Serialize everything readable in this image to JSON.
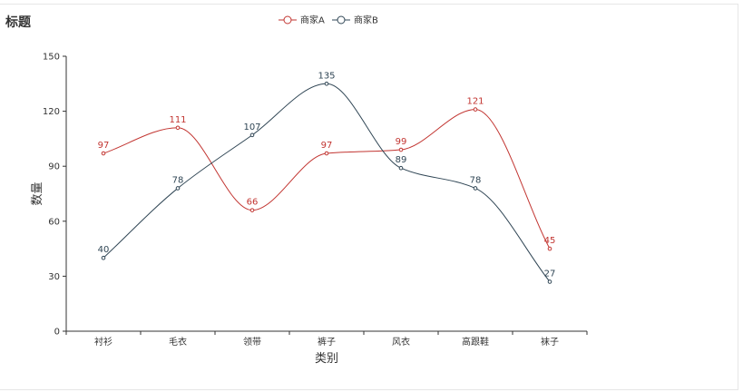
{
  "chart_data": {
    "type": "line",
    "title": "标题",
    "xlabel": "类别",
    "ylabel": "数量",
    "categories": [
      "衬衫",
      "毛衣",
      "领带",
      "裤子",
      "风衣",
      "高跟鞋",
      "袜子"
    ],
    "ylim": [
      0,
      150
    ],
    "yticks": [
      0,
      30,
      60,
      90,
      120,
      150
    ],
    "smooth": true,
    "legend_position": "top-center",
    "series": [
      {
        "name": "商家A",
        "color": "#c23531",
        "values": [
          97,
          111,
          66,
          97,
          99,
          121,
          45
        ]
      },
      {
        "name": "商家B",
        "color": "#2f4554",
        "values": [
          40,
          78,
          107,
          135,
          89,
          78,
          27
        ]
      }
    ]
  }
}
